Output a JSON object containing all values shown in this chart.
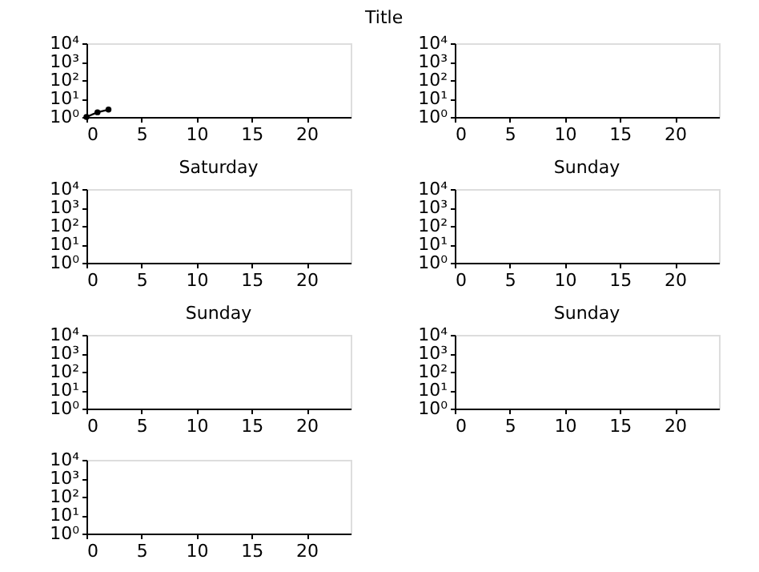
{
  "chart_data": [
    {
      "type": "line",
      "x": [
        0,
        1,
        2
      ],
      "values": [
        1,
        1.8,
        2.5
      ],
      "color": "#000000",
      "marker": "circle",
      "log": true,
      "xlim": [
        0,
        24
      ],
      "ylim": [
        1,
        10000
      ],
      "xticks": [
        0,
        5,
        10,
        15,
        20
      ],
      "yticks": [
        {
          "value": 1,
          "label": "10⁰"
        },
        {
          "value": 10,
          "label": "10¹"
        },
        {
          "value": 100,
          "label": "10²"
        },
        {
          "value": 1000,
          "label": "10³"
        },
        {
          "value": 10000,
          "label": "10⁴"
        }
      ],
      "grid": false,
      "annotations": [
        "Title"
      ]
    },
    {
      "type": "line",
      "log": true,
      "xlim": [
        0,
        24
      ],
      "ylim": [
        1,
        10000
      ],
      "xticks": [
        0,
        5,
        10,
        15,
        20
      ],
      "yticks": [
        {
          "value": 1,
          "label": "10⁰"
        },
        {
          "value": 10,
          "label": "10¹"
        },
        {
          "value": 100,
          "label": "10²"
        },
        {
          "value": 1000,
          "label": "10³"
        },
        {
          "value": 10000,
          "label": "10⁴"
        }
      ],
      "grid": false
    },
    {
      "type": "line",
      "title": "Saturday",
      "log": true,
      "xlim": [
        0,
        24
      ],
      "ylim": [
        1,
        10000
      ],
      "xticks": [
        0,
        5,
        10,
        15,
        20
      ],
      "yticks": [
        {
          "value": 1,
          "label": "10⁰"
        },
        {
          "value": 10,
          "label": "10¹"
        },
        {
          "value": 100,
          "label": "10²"
        },
        {
          "value": 1000,
          "label": "10³"
        },
        {
          "value": 10000,
          "label": "10⁴"
        }
      ],
      "grid": false
    },
    {
      "type": "line",
      "title": "Sunday",
      "log": true,
      "xlim": [
        0,
        24
      ],
      "ylim": [
        1,
        10000
      ],
      "xticks": [
        0,
        5,
        10,
        15,
        20
      ],
      "yticks": [
        {
          "value": 1,
          "label": "10⁰"
        },
        {
          "value": 10,
          "label": "10¹"
        },
        {
          "value": 100,
          "label": "10²"
        },
        {
          "value": 1000,
          "label": "10³"
        },
        {
          "value": 10000,
          "label": "10⁴"
        }
      ],
      "grid": false
    },
    {
      "type": "line",
      "title": "Sunday",
      "log": true,
      "xlim": [
        0,
        24
      ],
      "ylim": [
        1,
        10000
      ],
      "xticks": [
        0,
        5,
        10,
        15,
        20
      ],
      "yticks": [
        {
          "value": 1,
          "label": "10⁰"
        },
        {
          "value": 10,
          "label": "10¹"
        },
        {
          "value": 100,
          "label": "10²"
        },
        {
          "value": 1000,
          "label": "10³"
        },
        {
          "value": 10000,
          "label": "10⁴"
        }
      ],
      "grid": false
    },
    {
      "type": "line",
      "title": "Sunday",
      "log": true,
      "xlim": [
        0,
        24
      ],
      "ylim": [
        1,
        10000
      ],
      "xticks": [
        0,
        5,
        10,
        15,
        20
      ],
      "yticks": [
        {
          "value": 1,
          "label": "10⁰"
        },
        {
          "value": 10,
          "label": "10¹"
        },
        {
          "value": 100,
          "label": "10²"
        },
        {
          "value": 1000,
          "label": "10³"
        },
        {
          "value": 10000,
          "label": "10⁴"
        }
      ],
      "grid": false
    },
    {
      "type": "line",
      "log": true,
      "xlim": [
        0,
        24
      ],
      "ylim": [
        1,
        10000
      ],
      "xticks": [
        0,
        5,
        10,
        15,
        20
      ],
      "yticks": [
        {
          "value": 1,
          "label": "10⁰"
        },
        {
          "value": 10,
          "label": "10¹"
        },
        {
          "value": 100,
          "label": "10²"
        },
        {
          "value": 1000,
          "label": "10³"
        },
        {
          "value": 10000,
          "label": "10⁴"
        }
      ],
      "grid": false
    }
  ]
}
